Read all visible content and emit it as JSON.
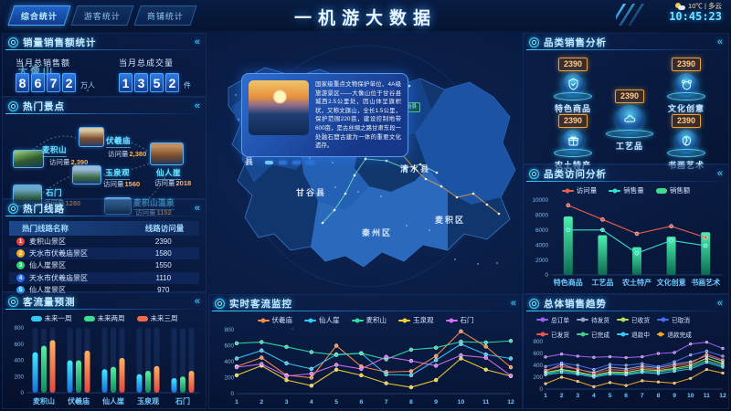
{
  "ui": {
    "collapse": "«",
    "visit_label": "访问量"
  },
  "header": {
    "title": "一机游大数据",
    "tabs": [
      {
        "label": "综合统计",
        "active": true
      },
      {
        "label": "游客统计",
        "active": false
      },
      {
        "label": "商铺统计",
        "active": false
      }
    ],
    "weather": "10℃ | 多云",
    "time": "10:45:23"
  },
  "sales_summary": {
    "title": "销量销售额统计",
    "stats": [
      {
        "label": "当月总销售额",
        "digits": "8672",
        "unit": "万人"
      },
      {
        "label": "当月总成交量",
        "digits": "1352",
        "unit": "件"
      }
    ]
  },
  "hot_spots": {
    "title": "热门景点",
    "items": [
      {
        "name": "麦积山",
        "value": "2,390"
      },
      {
        "name": "伏羲庙",
        "value": "2,380"
      },
      {
        "name": "仙人崖",
        "value": "2018"
      },
      {
        "name": "玉泉观",
        "value": "1560"
      },
      {
        "name": "石门",
        "value": "1280"
      },
      {
        "name": "麦积山温泉",
        "value": "1152"
      }
    ]
  },
  "hot_routes": {
    "title": "热门线路",
    "columns": [
      "热门线路名称",
      "线路访问量"
    ],
    "rows": [
      {
        "rank": "1",
        "name": "麦积山景区",
        "value": "2390",
        "color": "#e8453c"
      },
      {
        "rank": "2",
        "name": "天水市伏羲庙景区",
        "value": "1580",
        "color": "#f5a623"
      },
      {
        "rank": "3",
        "name": "仙人崖景区",
        "value": "1550",
        "color": "#2ecc71"
      },
      {
        "rank": "4",
        "name": "天水市伏羲庙景区",
        "value": "1110",
        "color": "#2e6cf5"
      },
      {
        "rank": "5",
        "name": "仙人崖景区",
        "value": "970",
        "color": "#2e9bf5"
      }
    ]
  },
  "map": {
    "card": {
      "name": "大像山",
      "description": "国家级重点文物保护单位、4A级旅游景区——大像山位于甘谷县城西2.5公里处，因山体呈旗帜状，又称文旗山，全长1.5公里，保护范围220亩，建设控制地带600亩，是古丝绸之路甘肃东段一处融石窟古建为一体的重要文化遗存。"
    },
    "tag": "张家川回族自治县",
    "labels": [
      "武山县",
      "甘谷县",
      "秦安县",
      "清水县",
      "秦州区",
      "麦积区"
    ]
  },
  "category_sales": {
    "title": "品类销售分析",
    "items": [
      {
        "label": "特色商品",
        "value": "2390",
        "icon": "shield-icon"
      },
      {
        "label": "文化创意",
        "value": "2390",
        "icon": "mask-icon"
      },
      {
        "label": "工艺品",
        "value": "2390",
        "icon": "craft-icon"
      },
      {
        "label": "农土特产",
        "value": "2390",
        "icon": "gift-icon"
      },
      {
        "label": "书画艺术",
        "value": "2390",
        "icon": "art-icon"
      }
    ]
  },
  "chart_data": [
    {
      "id": "flow_forecast",
      "type": "bar",
      "title": "客流量预测",
      "categories": [
        "麦积山",
        "伏羲庙",
        "仙人崖",
        "玉泉观",
        "石门"
      ],
      "series": [
        {
          "name": "未来一周",
          "color": "#35c8f5",
          "values": [
            500,
            400,
            290,
            230,
            180
          ]
        },
        {
          "name": "未来两周",
          "color": "#3edc8e",
          "values": [
            580,
            400,
            320,
            270,
            200
          ]
        },
        {
          "name": "未来三周",
          "color": "#f06a4c",
          "values": [
            650,
            520,
            430,
            330,
            270
          ]
        }
      ],
      "ylim": [
        0,
        800
      ],
      "yticks": [
        0,
        200,
        400,
        600,
        800
      ]
    },
    {
      "id": "realtime_flow",
      "type": "line",
      "title": "实时客流监控",
      "x": [
        "1",
        "2",
        "3",
        "4",
        "5",
        "6",
        "7",
        "8",
        "9",
        "10",
        "11",
        "12"
      ],
      "series": [
        {
          "name": "伏羲庙",
          "color": "#ff8c42",
          "values": [
            340,
            450,
            230,
            200,
            600,
            340,
            270,
            280,
            470,
            780,
            590,
            330
          ]
        },
        {
          "name": "仙人崖",
          "color": "#35c8f5",
          "values": [
            440,
            540,
            380,
            310,
            490,
            505,
            240,
            230,
            420,
            620,
            490,
            440
          ]
        },
        {
          "name": "麦积山",
          "color": "#2edfa3",
          "values": [
            630,
            645,
            585,
            520,
            485,
            505,
            430,
            550,
            575,
            650,
            640,
            660
          ]
        },
        {
          "name": "玉泉观",
          "color": "#f5d033",
          "values": [
            230,
            350,
            170,
            100,
            300,
            230,
            130,
            80,
            170,
            440,
            300,
            220
          ]
        },
        {
          "name": "石门",
          "color": "#d86ef0",
          "values": [
            330,
            370,
            220,
            250,
            360,
            310,
            460,
            410,
            350,
            480,
            450,
            225
          ]
        }
      ],
      "ylim": [
        0,
        800
      ],
      "yticks": [
        0,
        200,
        400,
        600,
        800
      ]
    },
    {
      "id": "category_visits",
      "type": "mixed",
      "title": "品类访问分析",
      "categories": [
        "特色商品",
        "工艺品",
        "农土特产",
        "文化创意",
        "书画艺术"
      ],
      "bar_series": [
        {
          "name": "销售额",
          "color": "#3edc8e",
          "values": [
            7800,
            5300,
            3700,
            5100,
            5700
          ]
        }
      ],
      "line_series": [
        {
          "name": "访问量",
          "color": "#e8604c",
          "values": [
            9300,
            7400,
            5500,
            6500,
            5000
          ]
        },
        {
          "name": "销售量",
          "color": "#35e0c8",
          "values": [
            6000,
            6000,
            2900,
            4600,
            3900
          ]
        }
      ],
      "ylim": [
        0,
        10000
      ],
      "yticks": [
        0,
        2000,
        4000,
        6000,
        8000,
        10000
      ]
    },
    {
      "id": "overall_trend",
      "type": "line",
      "title": "总体销售趋势",
      "x": [
        "1",
        "2",
        "3",
        "4",
        "5",
        "6",
        "7",
        "8",
        "9",
        "10",
        "11",
        "12"
      ],
      "series": [
        {
          "name": "总订单",
          "color": "#a55cf6",
          "values": [
            540,
            590,
            555,
            535,
            545,
            530,
            545,
            600,
            615,
            760,
            790,
            685
          ]
        },
        {
          "name": "待发货",
          "color": "#8fa3c8",
          "values": [
            300,
            420,
            330,
            280,
            370,
            340,
            390,
            360,
            420,
            460,
            560,
            470
          ]
        },
        {
          "name": "已收货",
          "color": "#b8e14a",
          "values": [
            280,
            330,
            290,
            230,
            290,
            280,
            330,
            310,
            350,
            400,
            520,
            430
          ]
        },
        {
          "name": "已取消",
          "color": "#4a6cf5",
          "values": [
            380,
            440,
            400,
            330,
            415,
            400,
            430,
            380,
            460,
            575,
            640,
            555
          ]
        },
        {
          "name": "已发货",
          "color": "#e85555",
          "values": [
            320,
            380,
            340,
            260,
            330,
            310,
            360,
            330,
            390,
            430,
            590,
            490
          ]
        },
        {
          "name": "已完成",
          "color": "#3ecf8e",
          "values": [
            260,
            310,
            270,
            220,
            270,
            260,
            300,
            290,
            330,
            370,
            480,
            400
          ]
        },
        {
          "name": "退款中",
          "color": "#35c8f5",
          "values": [
            240,
            280,
            250,
            200,
            250,
            240,
            280,
            260,
            300,
            340,
            450,
            370
          ]
        },
        {
          "name": "退款完成",
          "color": "#f5a623",
          "values": [
            90,
            200,
            130,
            40,
            110,
            60,
            140,
            120,
            100,
            180,
            330,
            270
          ]
        }
      ],
      "ylim": [
        0,
        800
      ],
      "yticks": [
        0,
        200,
        400,
        600,
        800
      ]
    }
  ]
}
